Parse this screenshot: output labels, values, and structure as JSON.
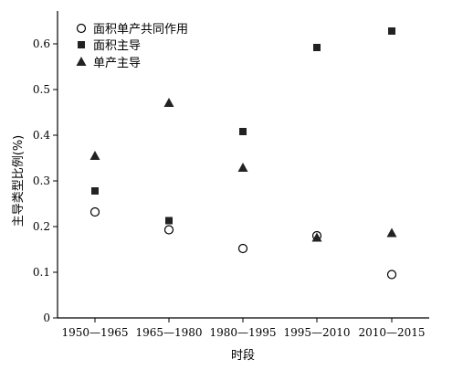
{
  "chart_data": {
    "type": "scatter",
    "categories": [
      "1950—1965",
      "1965—1980",
      "1980—1995",
      "1995—2010",
      "2010—2015"
    ],
    "xlabel": "时段",
    "ylabel": "主导类型比例(%)",
    "ylim": [
      0,
      0.65
    ],
    "yticks": [
      "0",
      "0.1",
      "0.2",
      "0.3",
      "0.4",
      "0.5",
      "0.6"
    ],
    "grid": false,
    "legend_position": "top-left",
    "series": [
      {
        "name": "面积单产共同作用",
        "marker": "open-circle",
        "color": "#000000",
        "values": [
          0.232,
          0.193,
          0.152,
          0.18,
          0.095
        ]
      },
      {
        "name": "面积主导",
        "marker": "filled-square",
        "color": "#222222",
        "values": [
          0.278,
          0.213,
          0.408,
          0.592,
          0.628
        ]
      },
      {
        "name": "单产主导",
        "marker": "filled-triangle",
        "color": "#222222",
        "values": [
          0.354,
          0.47,
          0.328,
          0.175,
          0.185
        ]
      }
    ]
  }
}
